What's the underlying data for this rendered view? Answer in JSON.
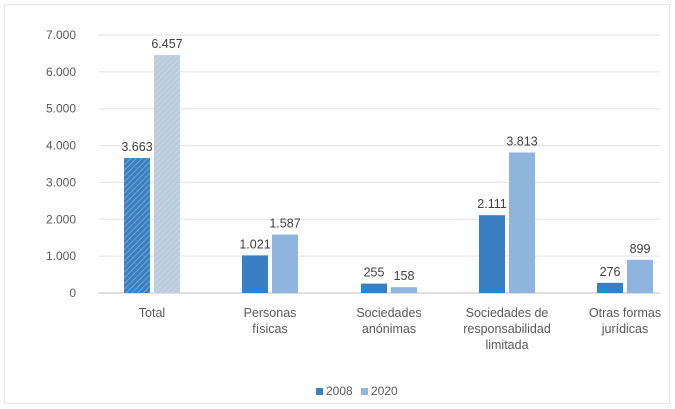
{
  "chart_data": {
    "type": "bar",
    "categories": [
      [
        "Total"
      ],
      [
        "Personas",
        "físicas"
      ],
      [
        "Sociedades",
        "anónimas"
      ],
      [
        "Sociedades de",
        "responsabilidad",
        "limitada"
      ],
      [
        "Otras formas",
        "jurídicas"
      ]
    ],
    "series": [
      {
        "name": "2008",
        "color": "#3a7fc1",
        "values": [
          3663,
          1021,
          255,
          2111,
          276
        ],
        "labels": [
          "3.663",
          "1.021",
          "255",
          "2.111",
          "276"
        ]
      },
      {
        "name": "2020",
        "color": "#8fb5de",
        "values": [
          6457,
          1587,
          158,
          3813,
          899
        ],
        "labels": [
          "6.457",
          "1.587",
          "158",
          "3.813",
          "899"
        ]
      }
    ],
    "ylim": [
      0,
      7000
    ],
    "yticks": [
      "0",
      "1.000",
      "2.000",
      "3.000",
      "4.000",
      "5.000",
      "6.000",
      "7.000"
    ],
    "grid": true,
    "legend_position": "bottom"
  }
}
